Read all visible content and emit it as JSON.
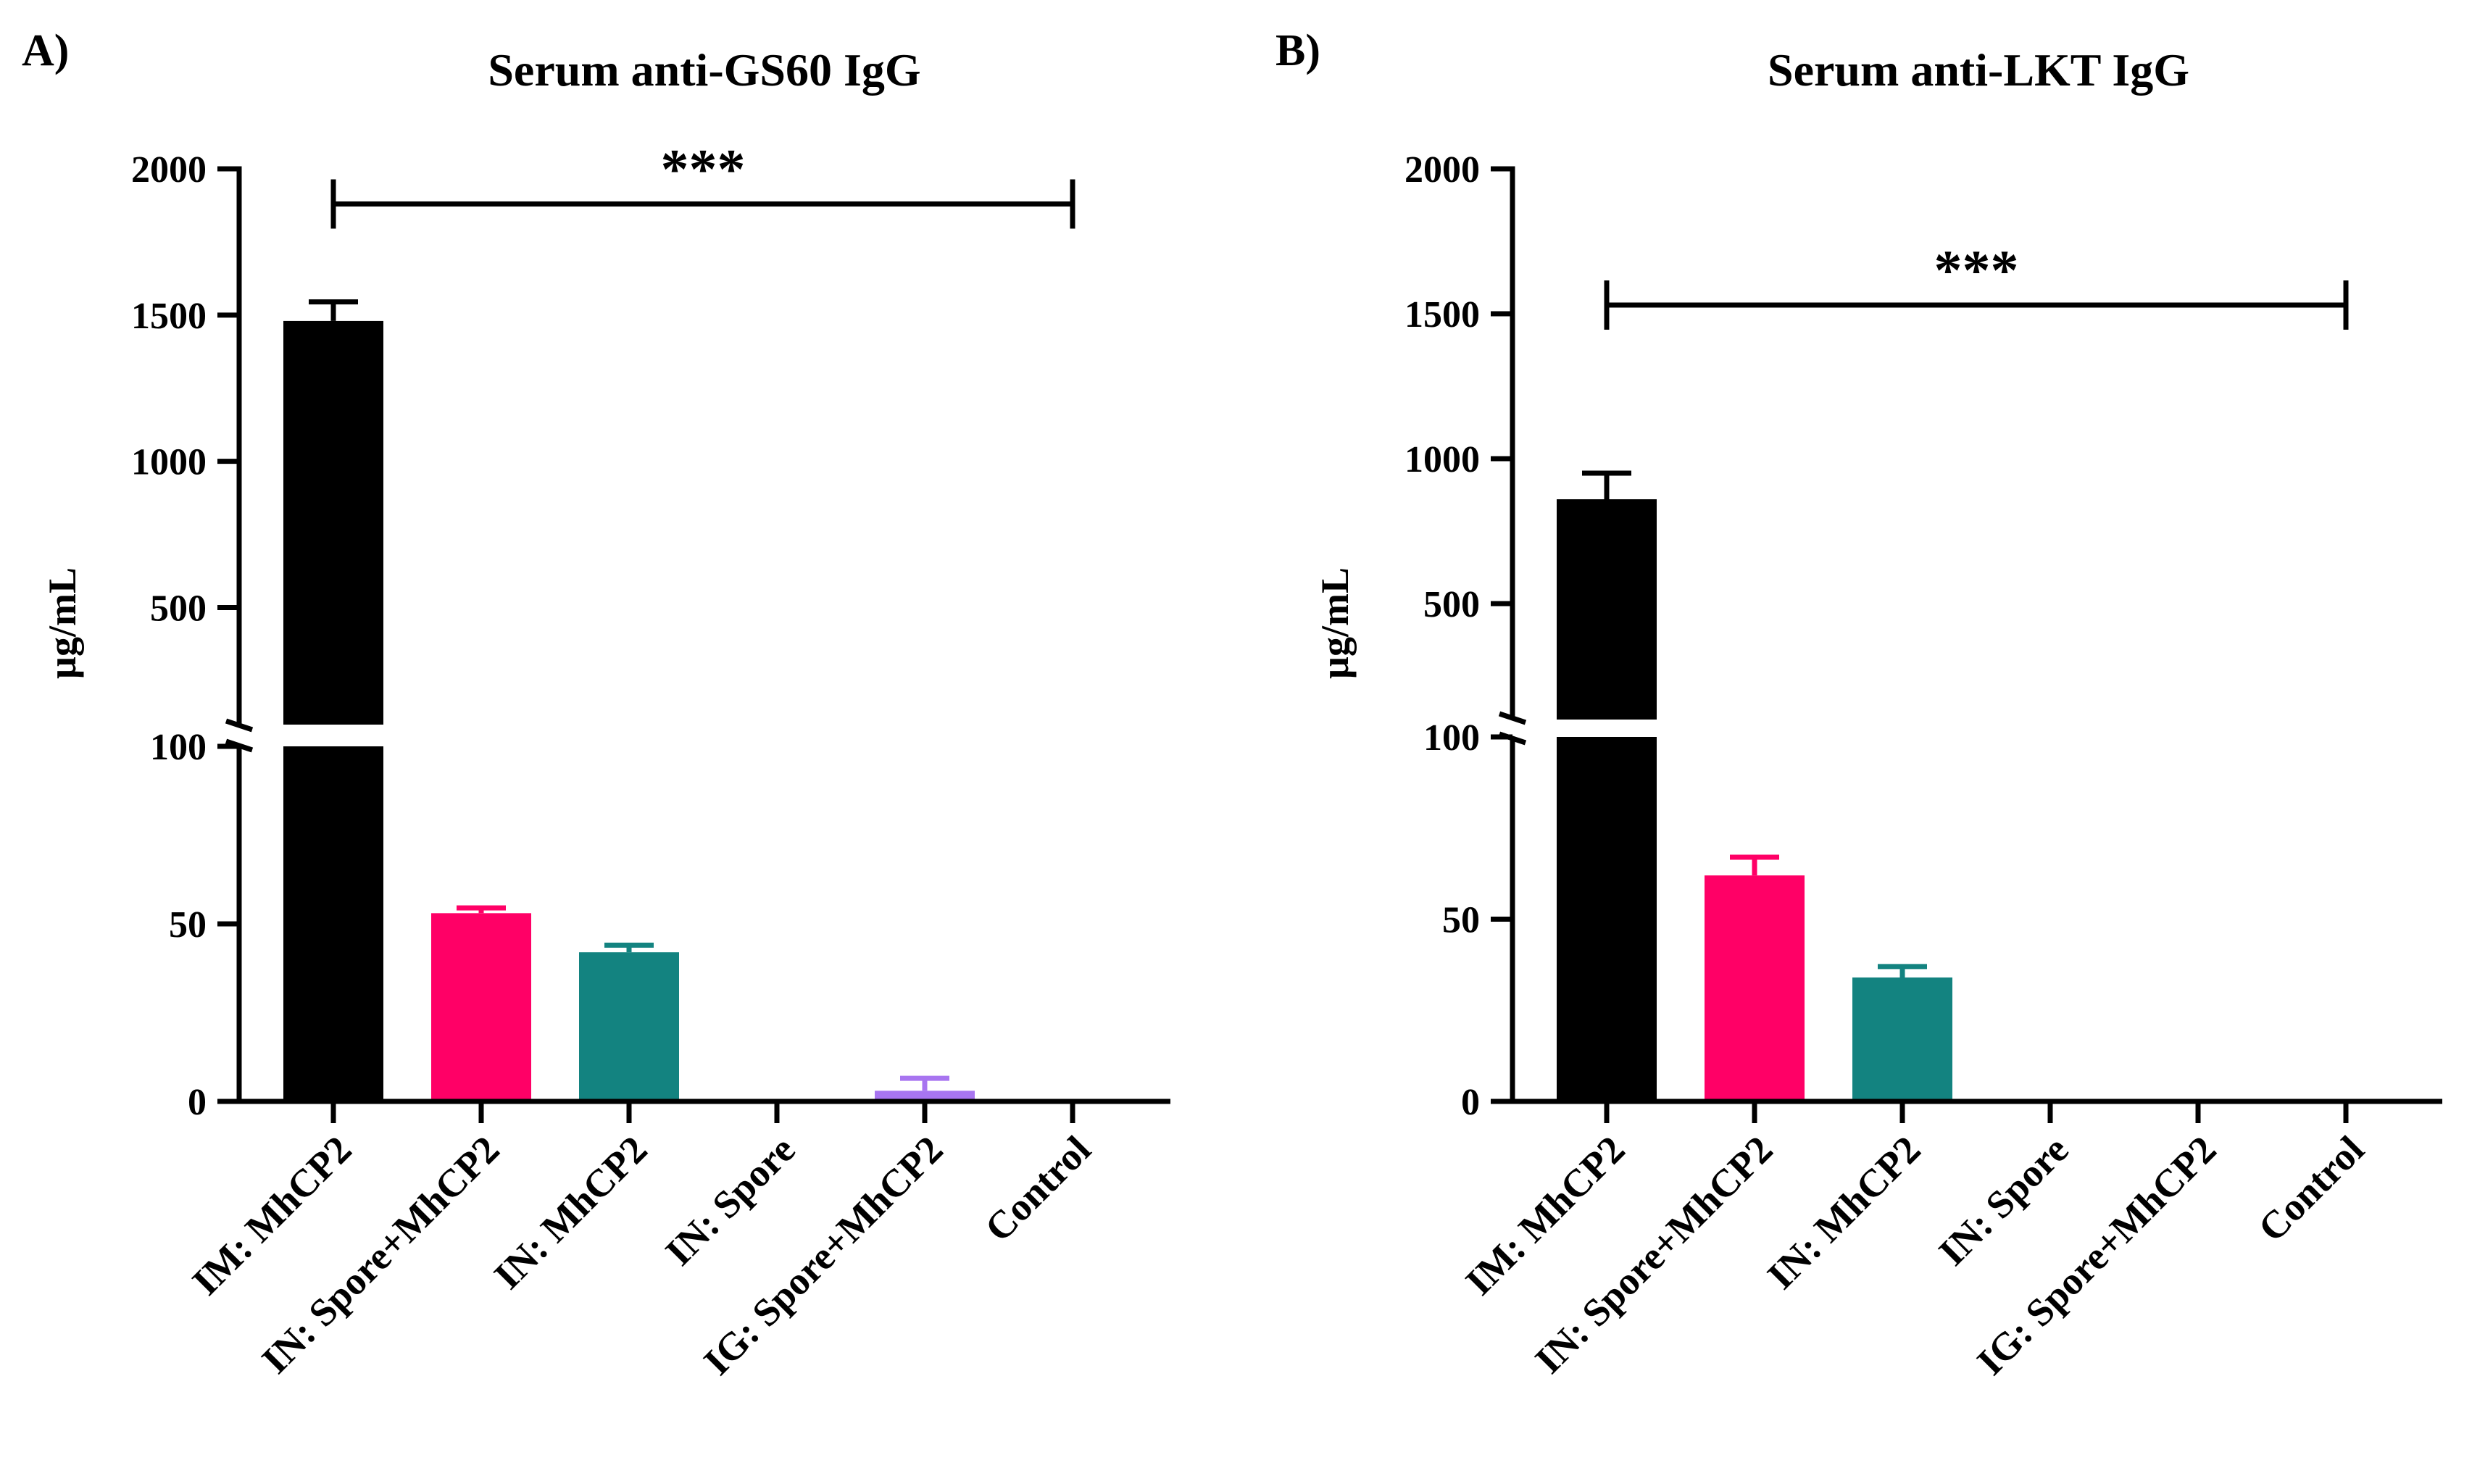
{
  "chart_data": [
    {
      "panel_label": "A)",
      "type": "bar",
      "title": "Serum anti-GS60 IgG",
      "ylabel": "µg/mL",
      "xlabel": "",
      "categories": [
        "IM: MhCP2",
        "IN: Spore+MhCP2",
        "IN: MhCP2",
        "IN: Spore",
        "IG: Spore+MhCP2",
        "Control"
      ],
      "values": [
        1480,
        53,
        42,
        0,
        3,
        0
      ],
      "errors": [
        65,
        1.5,
        2,
        0,
        3.5,
        0
      ],
      "colors": [
        "#000000",
        "#ff0066",
        "#138380",
        "#a875f0",
        "#a875f0",
        "#000000"
      ],
      "y_axis_lower": {
        "range": [
          0,
          100
        ],
        "ticks": [
          0,
          50,
          100
        ],
        "tick_labels": [
          "0",
          "50",
          "100"
        ]
      },
      "y_axis_upper": {
        "range": [
          100,
          2000
        ],
        "ticks": [
          500,
          1000,
          1500,
          2000
        ],
        "tick_labels": [
          "500",
          "1000",
          "1500",
          "2000"
        ]
      },
      "significance": {
        "label": "***",
        "from": "IM: MhCP2",
        "to": "Control",
        "level": 1880
      }
    },
    {
      "panel_label": "B)",
      "type": "bar",
      "title": "Serum anti-LKT IgG",
      "ylabel": "µg/mL",
      "xlabel": "",
      "categories": [
        "IM: MhCP2",
        "IN: Spore+MhCP2",
        "IN: MhCP2",
        "IN: Spore",
        "IG: Spore+MhCP2",
        "Control"
      ],
      "values": [
        860,
        62,
        34,
        0,
        0,
        0
      ],
      "errors": [
        90,
        5,
        3,
        0,
        0,
        0
      ],
      "colors": [
        "#000000",
        "#ff0066",
        "#138380",
        "#138380",
        "#a875f0",
        "#000000"
      ],
      "y_axis_lower": {
        "range": [
          0,
          100
        ],
        "ticks": [
          0,
          50,
          100
        ],
        "tick_labels": [
          "0",
          "50",
          "100"
        ]
      },
      "y_axis_upper": {
        "range": [
          100,
          2000
        ],
        "ticks": [
          500,
          1000,
          1500,
          2000
        ],
        "tick_labels": [
          "500",
          "1000",
          "1500",
          "2000"
        ]
      },
      "significance": {
        "label": "***",
        "from": "IM: MhCP2",
        "to": "Control",
        "level": 1530
      }
    }
  ]
}
